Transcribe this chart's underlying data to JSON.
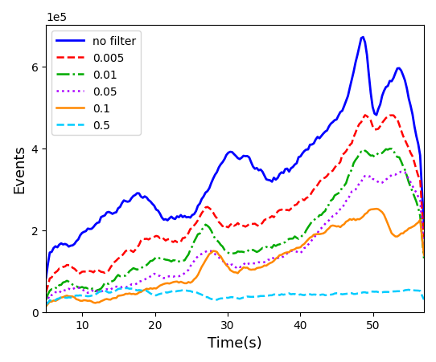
{
  "title": "",
  "xlabel": "Time(s)",
  "ylabel": "Events",
  "xlim": [
    5,
    57
  ],
  "ylim": [
    0,
    70000
  ],
  "legend_labels": [
    "no filter",
    "0.005",
    "0.01",
    "0.05",
    "0.1",
    "0.5"
  ],
  "line_colors": [
    "#0000ff",
    "#ff0000",
    "#00aa00",
    "#aa00ff",
    "#ff8800",
    "#00ccff"
  ],
  "line_styles": [
    "-",
    "--",
    "-.",
    ":",
    "-",
    "--"
  ],
  "line_widths": [
    2.0,
    1.8,
    1.8,
    1.8,
    1.8,
    1.8
  ],
  "background_color": "#ffffff",
  "seed": 42
}
